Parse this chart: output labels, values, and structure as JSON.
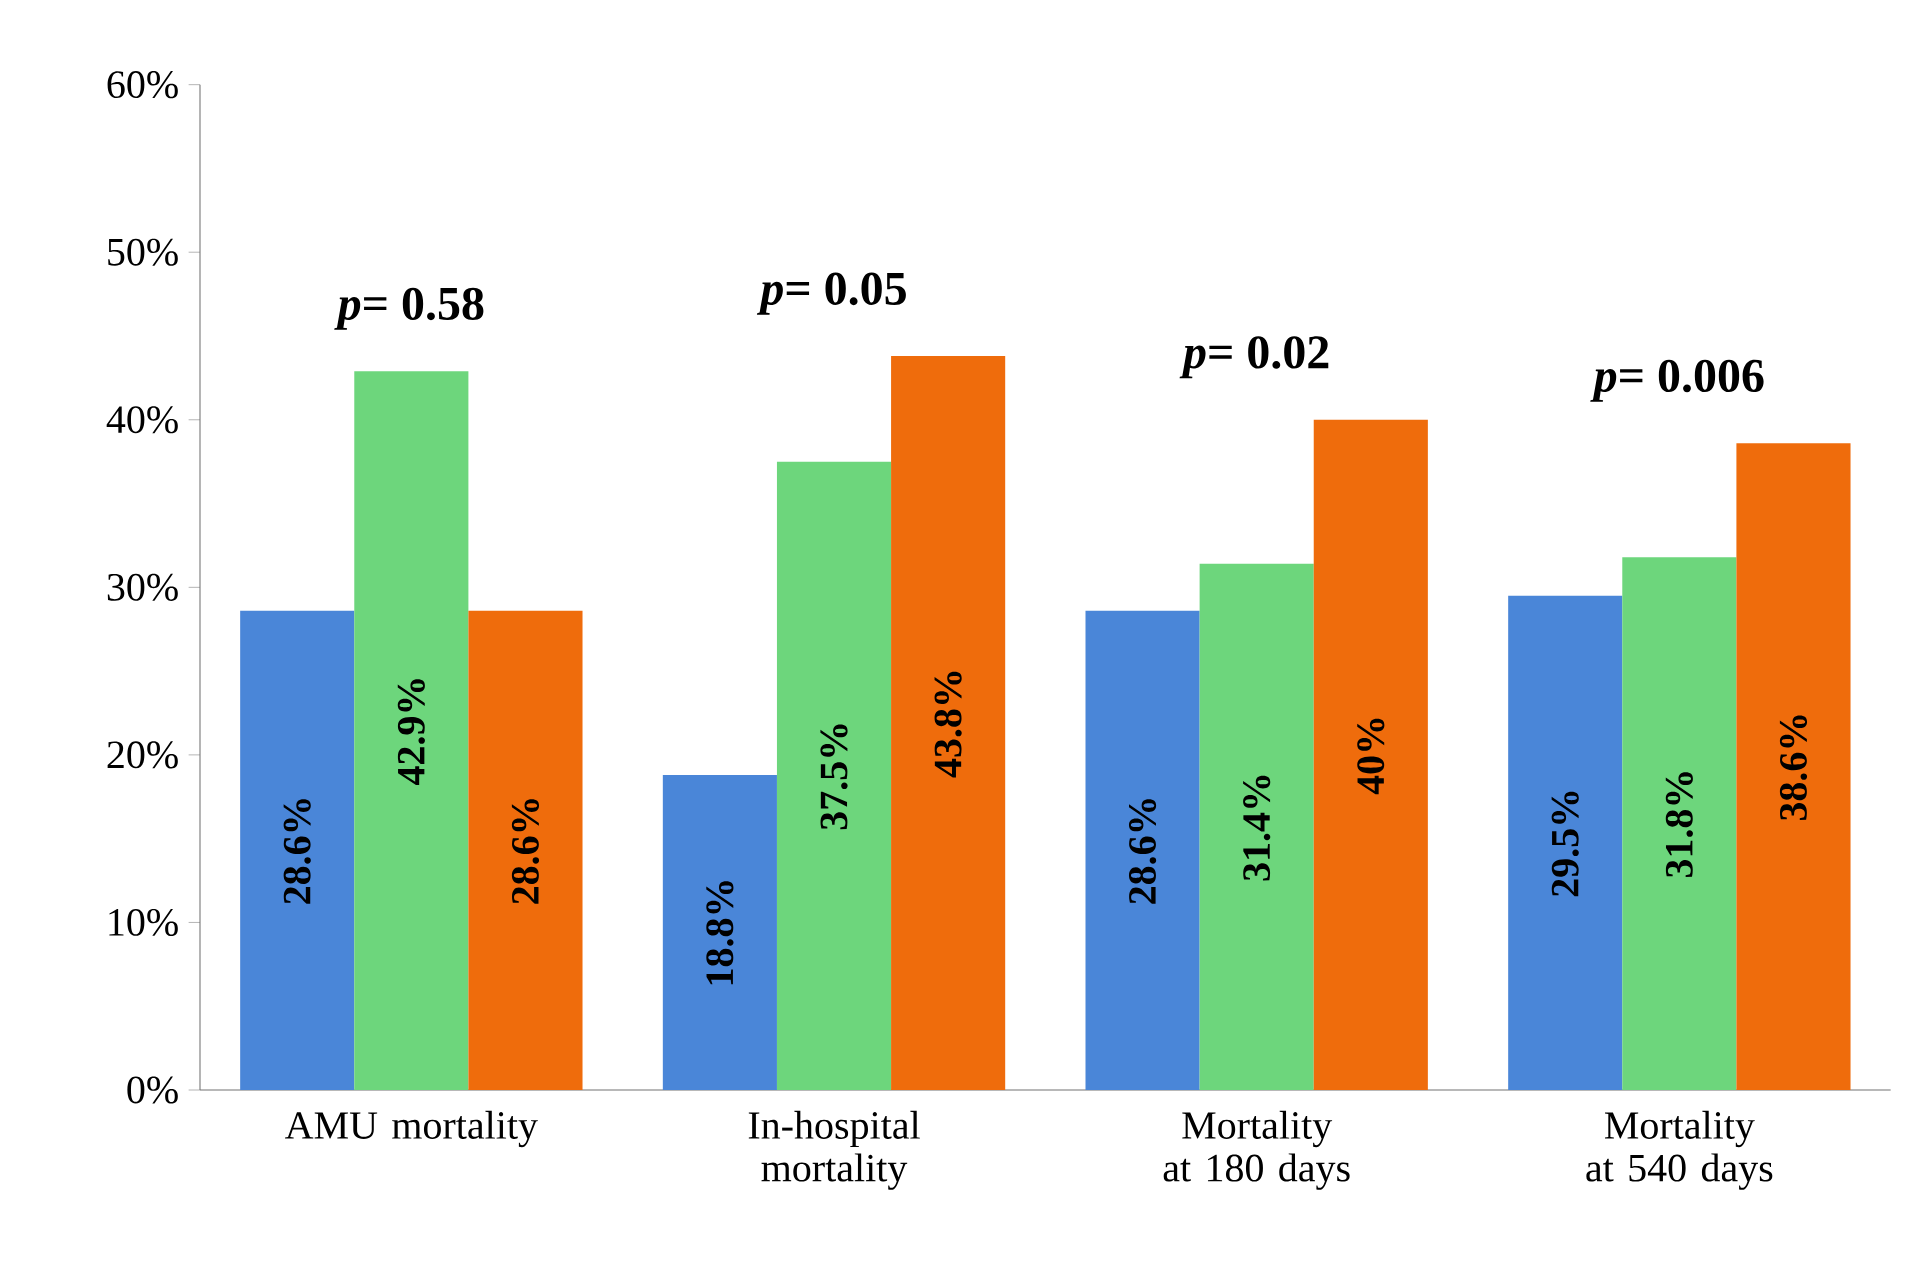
{
  "chart_data": {
    "type": "bar",
    "categories": [
      "AMU mortality",
      "In-hospital mortality",
      "Mortality at 180 days",
      "Mortality at 540 days"
    ],
    "series": [
      {
        "color": "#4a86d8",
        "values": [
          28.6,
          18.8,
          28.6,
          29.5
        ],
        "value_labels": [
          "28.6%",
          "18.8%",
          "28.6%",
          "29.5%"
        ]
      },
      {
        "color": "#6dd67c",
        "values": [
          42.9,
          37.5,
          31.4,
          31.8
        ],
        "value_labels": [
          "42.9%",
          "37.5%",
          "31.4%",
          "31.8%"
        ]
      },
      {
        "color": "#ef6c0c",
        "values": [
          28.6,
          43.8,
          40,
          38.6
        ],
        "value_labels": [
          "28.6%",
          "43.8%",
          "40%",
          "38.6%"
        ]
      }
    ],
    "ylim": [
      0,
      60
    ],
    "yticks": [
      {
        "value": 0,
        "label": "0%"
      },
      {
        "value": 10,
        "label": "10%"
      },
      {
        "value": 20,
        "label": "20%"
      },
      {
        "value": 30,
        "label": "30%"
      },
      {
        "value": 40,
        "label": "40%"
      },
      {
        "value": 50,
        "label": "50%"
      },
      {
        "value": 60,
        "label": "60%"
      }
    ],
    "annotations": [
      "*p*= 0.58",
      "*p*= 0.05",
      "*p*= 0.02",
      "*p*= 0.006"
    ]
  }
}
